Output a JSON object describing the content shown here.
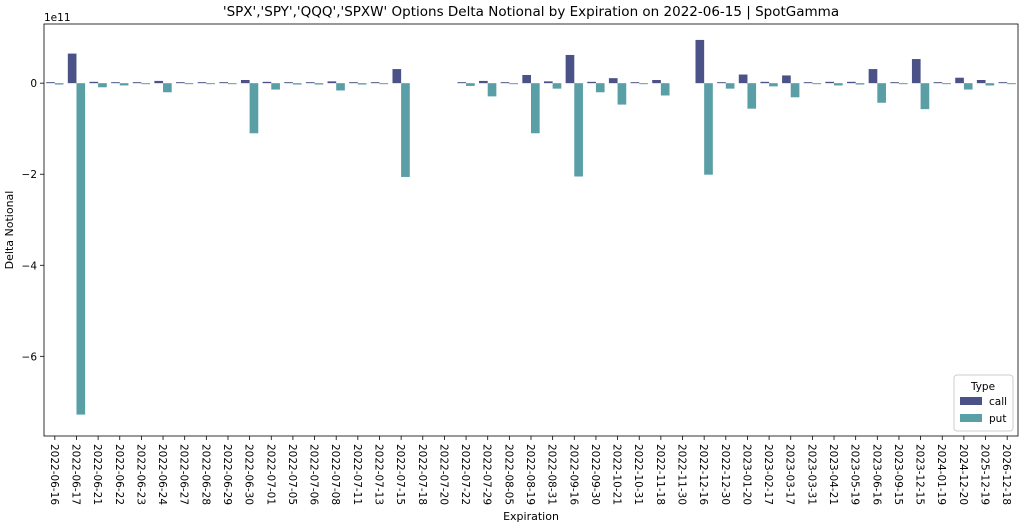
{
  "chart_data": {
    "type": "bar",
    "title": "'SPX','SPY','QQQ','SPXW' Options Delta Notional by Expiration on 2022-06-15 | SpotGamma",
    "xlabel": "Expiration",
    "ylabel": "Delta Notional",
    "y_offset_label": "1e11",
    "y_scale": 100000000000,
    "ylim": [
      -7.75,
      1.3
    ],
    "yticks": [
      0,
      -2,
      -4,
      -6
    ],
    "grid": false,
    "legend": {
      "title": "Type",
      "position": "bottom-right"
    },
    "categories": [
      "2022-06-16",
      "2022-06-17",
      "2022-06-21",
      "2022-06-22",
      "2022-06-23",
      "2022-06-24",
      "2022-06-27",
      "2022-06-28",
      "2022-06-29",
      "2022-06-30",
      "2022-07-01",
      "2022-07-05",
      "2022-07-06",
      "2022-07-08",
      "2022-07-11",
      "2022-07-13",
      "2022-07-15",
      "2022-07-18",
      "2022-07-20",
      "2022-07-22",
      "2022-07-29",
      "2022-08-05",
      "2022-08-19",
      "2022-08-31",
      "2022-09-16",
      "2022-09-30",
      "2022-10-21",
      "2022-10-31",
      "2022-11-18",
      "2022-11-30",
      "2022-12-16",
      "2022-12-30",
      "2023-01-20",
      "2023-02-17",
      "2023-03-17",
      "2023-03-31",
      "2023-04-21",
      "2023-05-19",
      "2023-06-16",
      "2023-09-15",
      "2023-12-15",
      "2024-01-19",
      "2024-12-20",
      "2025-12-19",
      "2026-12-18"
    ],
    "series": [
      {
        "name": "call",
        "color": "#4a5287",
        "values": [
          0.02,
          0.65,
          0.03,
          0.02,
          0.01,
          0.05,
          0.02,
          0.005,
          0.01,
          0.07,
          0.03,
          0.02,
          0.01,
          0.04,
          0.01,
          0.005,
          0.31,
          0.0,
          0.0,
          0.02,
          0.05,
          0.01,
          0.18,
          0.04,
          0.62,
          0.03,
          0.11,
          0.01,
          0.07,
          0.0,
          0.95,
          0.02,
          0.19,
          0.03,
          0.17,
          0.01,
          0.03,
          0.03,
          0.31,
          0.02,
          0.53,
          0.02,
          0.12,
          0.07,
          0.01
        ]
      },
      {
        "name": "put",
        "color": "#5a9ea6",
        "values": [
          -0.03,
          -7.28,
          -0.09,
          -0.05,
          -0.02,
          -0.2,
          -0.02,
          -0.005,
          -0.02,
          -1.1,
          -0.14,
          -0.03,
          -0.03,
          -0.16,
          -0.03,
          -0.005,
          -2.06,
          0.0,
          0.0,
          -0.06,
          -0.29,
          -0.02,
          -1.1,
          -0.12,
          -2.05,
          -0.2,
          -0.47,
          -0.02,
          -0.27,
          0.0,
          -2.01,
          -0.12,
          -0.56,
          -0.07,
          -0.31,
          -0.01,
          -0.05,
          -0.03,
          -0.43,
          -0.02,
          -0.57,
          -0.02,
          -0.14,
          -0.05,
          -0.01
        ]
      }
    ]
  }
}
